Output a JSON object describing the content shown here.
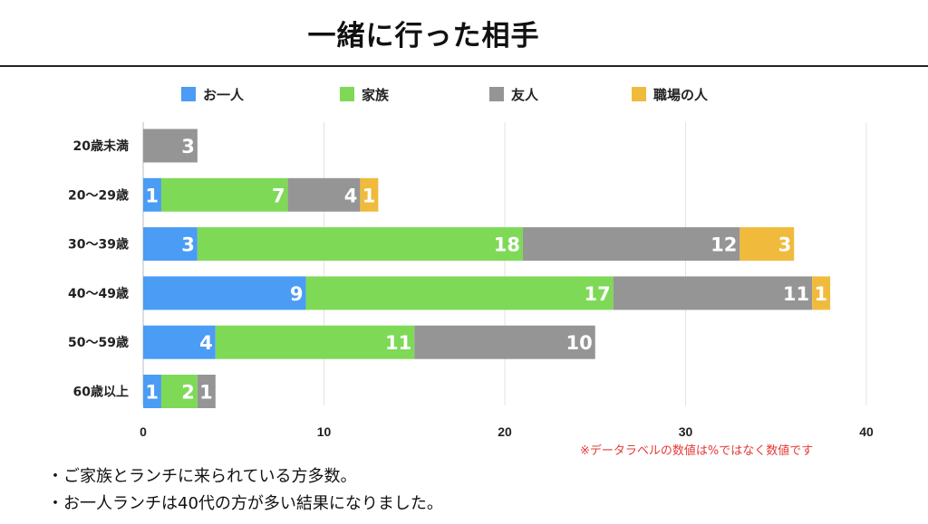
{
  "page": {
    "title": "一緒に行った相手",
    "note": "※データラベルの数値は%ではなく数値です",
    "bullets": [
      "・ご家族とランチに来られている方多数。",
      "・お一人ランチは40代の方が多い結果になりました。"
    ]
  },
  "chart_data": {
    "type": "bar",
    "orientation": "horizontal",
    "stacked": true,
    "title": "一緒に行った相手",
    "categories": [
      "20歳未満",
      "20〜29歳",
      "30〜39歳",
      "40〜49歳",
      "50〜59歳",
      "60歳以上"
    ],
    "series": [
      {
        "name": "お一人",
        "color": "#4a9cf5",
        "values": [
          0,
          1,
          3,
          9,
          4,
          1
        ]
      },
      {
        "name": "家族",
        "color": "#7ed957",
        "values": [
          0,
          7,
          18,
          17,
          11,
          2
        ]
      },
      {
        "name": "友人",
        "color": "#959595",
        "values": [
          3,
          4,
          12,
          11,
          10,
          1
        ]
      },
      {
        "name": "職場の人",
        "color": "#f0bb3c",
        "values": [
          0,
          1,
          3,
          1,
          0,
          0
        ]
      }
    ],
    "xlim": [
      0,
      40
    ],
    "xticks": [
      0,
      10,
      20,
      30,
      40
    ],
    "grid": true,
    "legend": "top"
  }
}
